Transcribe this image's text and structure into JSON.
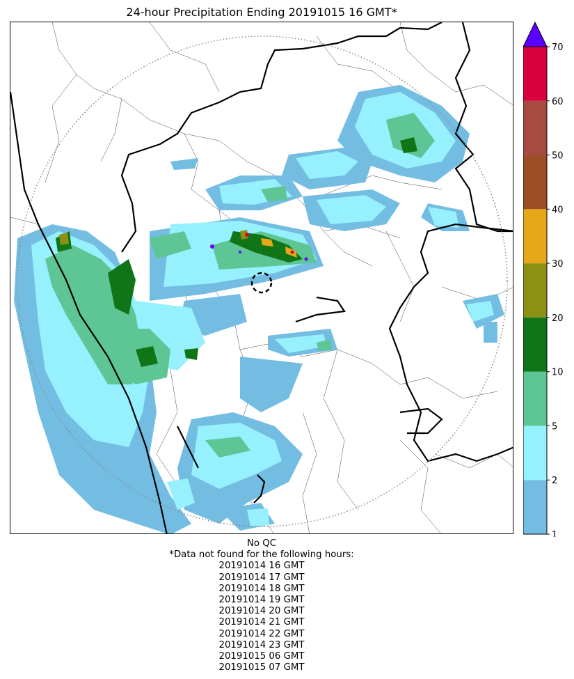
{
  "title": "24-hour Precipitation Ending 20191015 16 GMT*",
  "colorbar": {
    "levels": [
      1,
      2,
      5,
      10,
      20,
      30,
      40,
      50,
      60,
      70
    ],
    "tick_labels": [
      "1",
      "2",
      "5",
      "10",
      "20",
      "30",
      "40",
      "50",
      "60",
      "70"
    ],
    "colors": [
      "#74bde2",
      "#96f0fd",
      "#5ec594",
      "#0f7517",
      "#8c9115",
      "#e6a818",
      "#9d4e25",
      "#a64b41",
      "#d8003e"
    ],
    "extend_color": "#5a00ff",
    "extend": "max"
  },
  "map": {
    "rain_colors": {
      "light": "#74bde2",
      "cyan": "#96f0fd",
      "green": "#5ec594",
      "dark": "#0f7517",
      "olive": "#8c9115",
      "orange": "#e6a818",
      "red": "#d8003e",
      "purple": "#6a00ff"
    },
    "radar_range_ring": "dotted",
    "radar_site_marker": "dashed-circle"
  },
  "notes": {
    "qc": "No QC",
    "missing_header": "*Data not found for the following hours:",
    "missing_hours": [
      "20191014 16 GMT",
      "20191014 17 GMT",
      "20191014 18 GMT",
      "20191014 19 GMT",
      "20191014 20 GMT",
      "20191014 21 GMT",
      "20191014 22 GMT",
      "20191014 23 GMT",
      "20191015 06 GMT",
      "20191015 07 GMT"
    ]
  }
}
